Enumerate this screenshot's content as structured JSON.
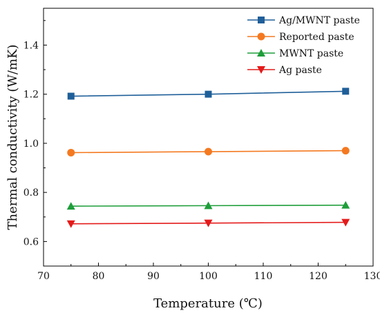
{
  "chart_data": {
    "type": "line",
    "title": "",
    "xlabel": "Temperature (℃)",
    "ylabel": "Thermal conductivity (W/mK)",
    "xlim": [
      70,
      130
    ],
    "ylim": [
      0.5,
      1.55
    ],
    "xticks": [
      70,
      80,
      90,
      100,
      110,
      120,
      130
    ],
    "yticks": [
      0.6,
      0.8,
      1.0,
      1.2,
      1.4
    ],
    "ytick_labels": [
      "0.6",
      "0.8",
      "1.0",
      "1.2",
      "1.4"
    ],
    "grid": false,
    "legend_position": "top-right",
    "x": [
      75,
      100,
      125
    ],
    "series": [
      {
        "name": "Ag/MWNT paste",
        "values": [
          1.192,
          1.2,
          1.212
        ],
        "color": "#1f5f99",
        "marker": "square"
      },
      {
        "name": "Reported paste",
        "values": [
          0.962,
          0.966,
          0.97
        ],
        "color": "#f47920",
        "marker": "circle"
      },
      {
        "name": "MWNT paste",
        "values": [
          0.744,
          0.746,
          0.748
        ],
        "color": "#1e9e3a",
        "marker": "triangle-up"
      },
      {
        "name": "Ag paste",
        "values": [
          0.672,
          0.675,
          0.678
        ],
        "color": "#e41a1a",
        "marker": "triangle-down"
      }
    ]
  }
}
